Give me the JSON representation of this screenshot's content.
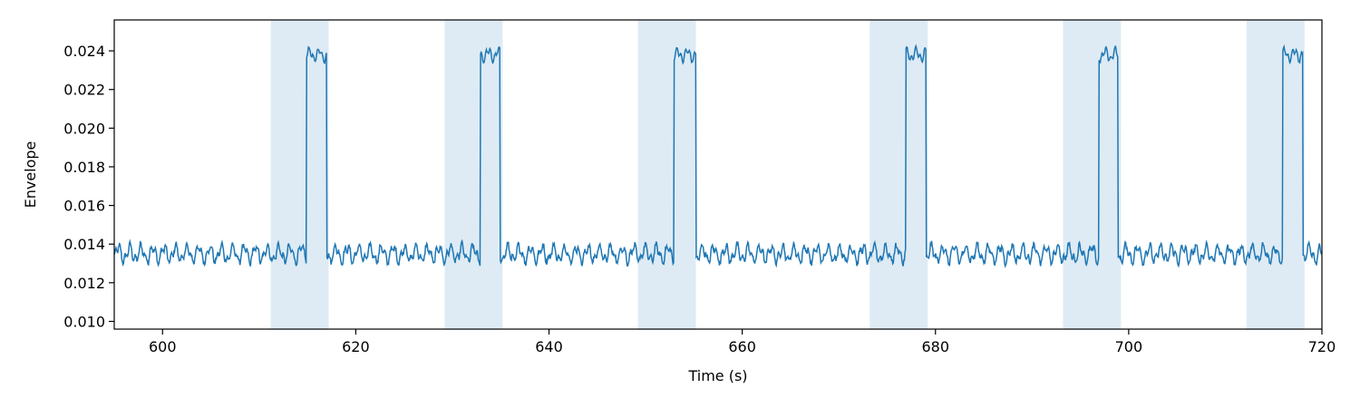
{
  "chart_data": {
    "type": "line",
    "title": "",
    "xlabel": "Time (s)",
    "ylabel": "Envelope",
    "xlim": [
      595,
      720
    ],
    "ylim": [
      0.0096,
      0.0256
    ],
    "x_ticks": [
      600,
      620,
      640,
      660,
      680,
      700,
      720
    ],
    "x_tick_labels": [
      "600",
      "620",
      "640",
      "660",
      "680",
      "700",
      "720"
    ],
    "y_ticks": [
      0.01,
      0.012,
      0.014,
      0.016,
      0.018,
      0.02,
      0.022,
      0.024
    ],
    "y_tick_labels": [
      "0.010",
      "0.012",
      "0.014",
      "0.016",
      "0.018",
      "0.020",
      "0.022",
      "0.024"
    ],
    "grid": false,
    "line_color": "#1f77b4",
    "span_color": "#1f77b4",
    "span_opacity": 0.15,
    "shaded_intervals": [
      [
        611.2,
        617.2
      ],
      [
        629.2,
        635.2
      ],
      [
        649.2,
        655.2
      ],
      [
        673.2,
        679.2
      ],
      [
        693.2,
        699.2
      ],
      [
        712.2,
        718.2
      ]
    ],
    "series": [
      {
        "baseline": 0.0135,
        "high_level": 0.0238,
        "high_intervals": [
          [
            614.9,
            617.0
          ],
          [
            632.9,
            634.9
          ],
          [
            652.9,
            655.2
          ],
          [
            676.9,
            679.0
          ],
          [
            696.9,
            698.9
          ],
          [
            715.9,
            718.0
          ]
        ]
      }
    ]
  }
}
